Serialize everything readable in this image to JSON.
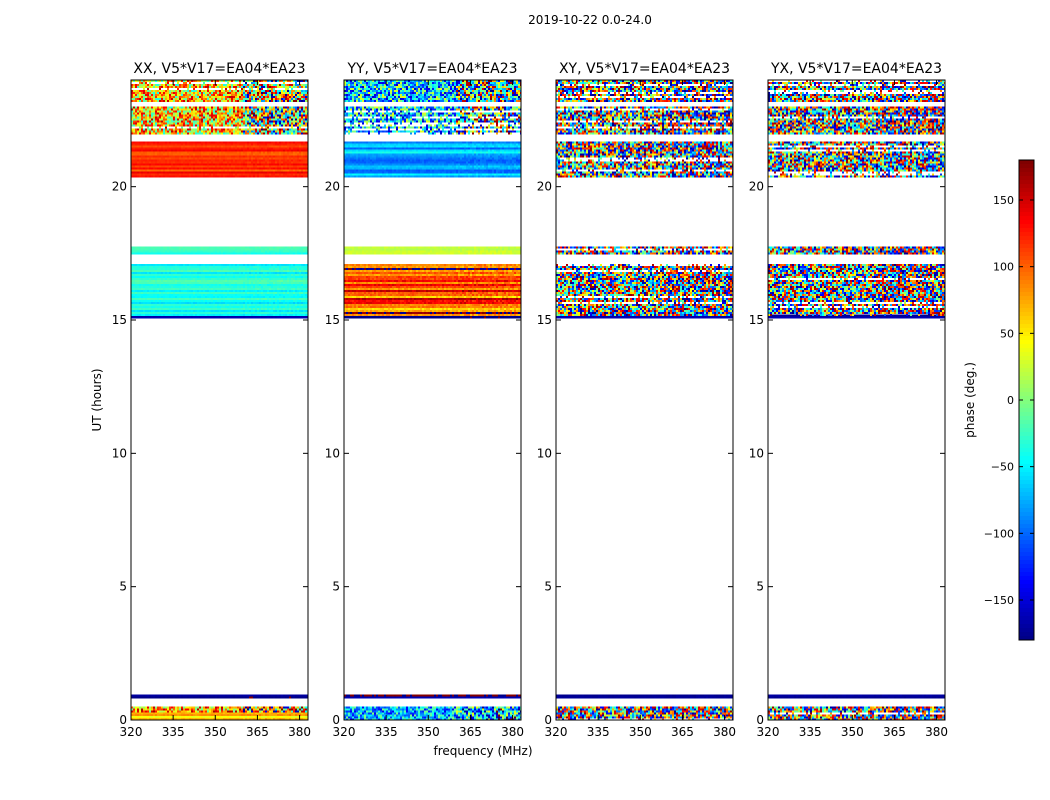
{
  "chart_data": {
    "type": "heatmap",
    "suptitle": "2019-10-22 0.0-24.0",
    "xlabel": "frequency (MHz)",
    "ylabel": "UT (hours)",
    "xticks": [
      "320",
      "335",
      "350",
      "365",
      "380"
    ],
    "xlim": [
      320,
      383
    ],
    "yticks": [
      "0",
      "5",
      "10",
      "15",
      "20"
    ],
    "ylim": [
      0,
      24
    ],
    "colorbar": {
      "label": "phase (deg.)",
      "ticks": [
        "150",
        "100",
        "50",
        "0",
        "−50",
        "−100",
        "−150"
      ],
      "tick_values": [
        150,
        100,
        50,
        0,
        -50,
        -100,
        -150
      ],
      "range": [
        -180,
        180
      ],
      "colormap": "jet"
    },
    "panels": [
      {
        "title": "XX, V5*V17=EA04*EA23",
        "data_bands": [
          {
            "t0": 0.0,
            "t1": 0.3,
            "mean_phase": 60,
            "spread": 0.35,
            "noisy": false
          },
          {
            "t0": 0.3,
            "t1": 0.5,
            "mean_phase": 80,
            "spread": 0.5,
            "noisy": true
          },
          {
            "t0": 0.85,
            "t1": 0.95,
            "mean_phase": -170,
            "spread": 0.1,
            "noisy": false
          },
          {
            "t0": 15.05,
            "t1": 15.2,
            "mean_phase": -170,
            "spread": 0.1,
            "noisy": false
          },
          {
            "t0": 15.2,
            "t1": 17.1,
            "mean_phase": -35,
            "spread": 0.2,
            "noisy": false
          },
          {
            "t0": 17.5,
            "t1": 17.75,
            "mean_phase": -30,
            "spread": 0.15,
            "noisy": false
          },
          {
            "t0": 20.4,
            "t1": 21.7,
            "mean_phase": 120,
            "spread": 0.2,
            "noisy": false
          },
          {
            "t0": 22.0,
            "t1": 23.0,
            "mean_phase": 60,
            "spread": 0.55,
            "noisy": true
          },
          {
            "t0": 23.2,
            "t1": 24.0,
            "mean_phase": 60,
            "spread": 0.55,
            "noisy": true
          }
        ]
      },
      {
        "title": "YY, V5*V17=EA04*EA23",
        "data_bands": [
          {
            "t0": 0.0,
            "t1": 0.5,
            "mean_phase": -70,
            "spread": 0.4,
            "noisy": true
          },
          {
            "t0": 0.85,
            "t1": 0.95,
            "mean_phase": -170,
            "spread": 0.1,
            "noisy": false
          },
          {
            "t0": 15.05,
            "t1": 15.2,
            "mean_phase": -170,
            "spread": 0.1,
            "noisy": false
          },
          {
            "t0": 15.2,
            "t1": 17.1,
            "mean_phase": 120,
            "spread": 0.6,
            "noisy": false
          },
          {
            "t0": 17.5,
            "t1": 17.75,
            "mean_phase": 10,
            "spread": 0.25,
            "noisy": false
          },
          {
            "t0": 20.4,
            "t1": 21.7,
            "mean_phase": -70,
            "spread": 0.3,
            "noisy": false
          },
          {
            "t0": 22.0,
            "t1": 23.0,
            "mean_phase": -60,
            "spread": 0.55,
            "noisy": true
          },
          {
            "t0": 23.2,
            "t1": 24.0,
            "mean_phase": -60,
            "spread": 0.55,
            "noisy": true
          }
        ]
      },
      {
        "title": "XY, V5*V17=EA04*EA23",
        "data_bands": [
          {
            "t0": 0.0,
            "t1": 0.5,
            "mean_phase": 0,
            "spread": 1.0,
            "noisy": true
          },
          {
            "t0": 0.85,
            "t1": 0.95,
            "mean_phase": -170,
            "spread": 0.1,
            "noisy": false
          },
          {
            "t0": 15.05,
            "t1": 15.2,
            "mean_phase": -170,
            "spread": 0.1,
            "noisy": false
          },
          {
            "t0": 15.2,
            "t1": 17.1,
            "mean_phase": 0,
            "spread": 1.0,
            "noisy": true
          },
          {
            "t0": 17.5,
            "t1": 17.75,
            "mean_phase": 0,
            "spread": 1.0,
            "noisy": true
          },
          {
            "t0": 20.4,
            "t1": 21.7,
            "mean_phase": 40,
            "spread": 1.0,
            "noisy": true
          },
          {
            "t0": 22.0,
            "t1": 23.0,
            "mean_phase": 0,
            "spread": 1.0,
            "noisy": true
          },
          {
            "t0": 23.2,
            "t1": 24.0,
            "mean_phase": 0,
            "spread": 1.0,
            "noisy": true
          }
        ]
      },
      {
        "title": "YX, V5*V17=EA04*EA23",
        "data_bands": [
          {
            "t0": 0.0,
            "t1": 0.5,
            "mean_phase": 0,
            "spread": 1.0,
            "noisy": true
          },
          {
            "t0": 0.85,
            "t1": 0.95,
            "mean_phase": -170,
            "spread": 0.1,
            "noisy": false
          },
          {
            "t0": 15.05,
            "t1": 15.2,
            "mean_phase": -170,
            "spread": 0.1,
            "noisy": false
          },
          {
            "t0": 15.2,
            "t1": 17.1,
            "mean_phase": 0,
            "spread": 1.0,
            "noisy": true
          },
          {
            "t0": 17.5,
            "t1": 17.75,
            "mean_phase": 0,
            "spread": 1.0,
            "noisy": true
          },
          {
            "t0": 20.4,
            "t1": 21.7,
            "mean_phase": 60,
            "spread": 1.0,
            "noisy": true
          },
          {
            "t0": 22.0,
            "t1": 23.0,
            "mean_phase": 0,
            "spread": 1.0,
            "noisy": true
          },
          {
            "t0": 23.2,
            "t1": 24.0,
            "mean_phase": 0,
            "spread": 1.0,
            "noisy": true
          }
        ]
      }
    ]
  }
}
